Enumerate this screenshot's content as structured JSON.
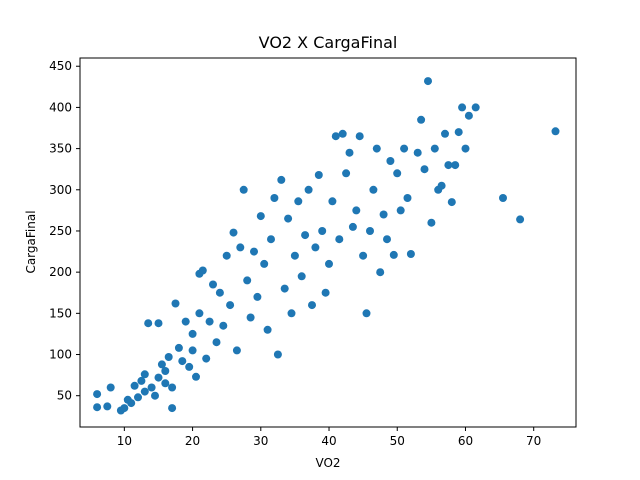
{
  "chart_data": {
    "type": "scatter",
    "title": "VO2 X CargaFinal",
    "xlabel": "VO2",
    "ylabel": "CargaFinal",
    "xlim": [
      3.5,
      76.2
    ],
    "ylim": [
      12,
      460
    ],
    "xticks": [
      10,
      20,
      30,
      40,
      50,
      60,
      70
    ],
    "yticks": [
      50,
      100,
      150,
      200,
      250,
      300,
      350,
      400,
      450
    ],
    "marker_color": "#1f77b4",
    "series": [
      {
        "name": "VO2 vs CargaFinal",
        "points": [
          [
            6,
            52
          ],
          [
            6,
            36
          ],
          [
            7.5,
            37
          ],
          [
            8,
            60
          ],
          [
            9.5,
            32
          ],
          [
            10,
            35
          ],
          [
            10.5,
            45
          ],
          [
            11,
            41
          ],
          [
            11.5,
            62
          ],
          [
            12,
            48
          ],
          [
            12.5,
            68
          ],
          [
            13,
            55
          ],
          [
            13,
            76
          ],
          [
            13.5,
            138
          ],
          [
            14,
            60
          ],
          [
            14.5,
            50
          ],
          [
            15,
            72
          ],
          [
            15,
            138
          ],
          [
            15.5,
            88
          ],
          [
            16,
            80
          ],
          [
            16,
            65
          ],
          [
            16.5,
            97
          ],
          [
            17,
            60
          ],
          [
            17,
            35
          ],
          [
            17.5,
            162
          ],
          [
            18,
            108
          ],
          [
            18.5,
            92
          ],
          [
            19,
            140
          ],
          [
            19.5,
            85
          ],
          [
            20,
            125
          ],
          [
            20,
            105
          ],
          [
            20.5,
            73
          ],
          [
            21,
            198
          ],
          [
            21,
            150
          ],
          [
            21.5,
            202
          ],
          [
            22,
            95
          ],
          [
            22.5,
            140
          ],
          [
            23,
            185
          ],
          [
            23.5,
            115
          ],
          [
            24,
            175
          ],
          [
            24.5,
            135
          ],
          [
            25,
            220
          ],
          [
            25.5,
            160
          ],
          [
            26,
            248
          ],
          [
            26.5,
            105
          ],
          [
            27,
            230
          ],
          [
            27.5,
            300
          ],
          [
            28,
            190
          ],
          [
            28.5,
            145
          ],
          [
            29,
            225
          ],
          [
            29.5,
            170
          ],
          [
            30,
            268
          ],
          [
            30.5,
            210
          ],
          [
            31,
            130
          ],
          [
            31.5,
            240
          ],
          [
            32,
            290
          ],
          [
            32.5,
            100
          ],
          [
            33,
            312
          ],
          [
            33.5,
            180
          ],
          [
            34,
            265
          ],
          [
            34.5,
            150
          ],
          [
            35,
            220
          ],
          [
            35.5,
            286
          ],
          [
            36,
            195
          ],
          [
            36.5,
            245
          ],
          [
            37,
            300
          ],
          [
            37.5,
            160
          ],
          [
            38,
            230
          ],
          [
            38.5,
            318
          ],
          [
            39,
            250
          ],
          [
            39.5,
            175
          ],
          [
            40,
            210
          ],
          [
            40.5,
            286
          ],
          [
            41,
            365
          ],
          [
            41.5,
            240
          ],
          [
            42,
            368
          ],
          [
            42.5,
            320
          ],
          [
            43,
            345
          ],
          [
            43.5,
            255
          ],
          [
            44,
            275
          ],
          [
            44.5,
            365
          ],
          [
            45,
            220
          ],
          [
            45.5,
            150
          ],
          [
            46,
            250
          ],
          [
            46.5,
            300
          ],
          [
            47,
            350
          ],
          [
            47.5,
            200
          ],
          [
            48,
            270
          ],
          [
            48.5,
            240
          ],
          [
            49,
            335
          ],
          [
            49.5,
            221
          ],
          [
            50,
            320
          ],
          [
            50.5,
            275
          ],
          [
            51,
            350
          ],
          [
            51.5,
            290
          ],
          [
            52,
            222
          ],
          [
            53,
            345
          ],
          [
            53.5,
            385
          ],
          [
            54,
            325
          ],
          [
            54.5,
            432
          ],
          [
            55,
            260
          ],
          [
            55.5,
            350
          ],
          [
            56,
            300
          ],
          [
            56.5,
            305
          ],
          [
            57,
            368
          ],
          [
            57.5,
            330
          ],
          [
            58,
            285
          ],
          [
            58.5,
            330
          ],
          [
            59,
            370
          ],
          [
            59.5,
            400
          ],
          [
            60,
            350
          ],
          [
            60.5,
            390
          ],
          [
            61.5,
            400
          ],
          [
            65.5,
            290
          ],
          [
            68,
            264
          ],
          [
            73.2,
            371
          ]
        ]
      }
    ]
  }
}
